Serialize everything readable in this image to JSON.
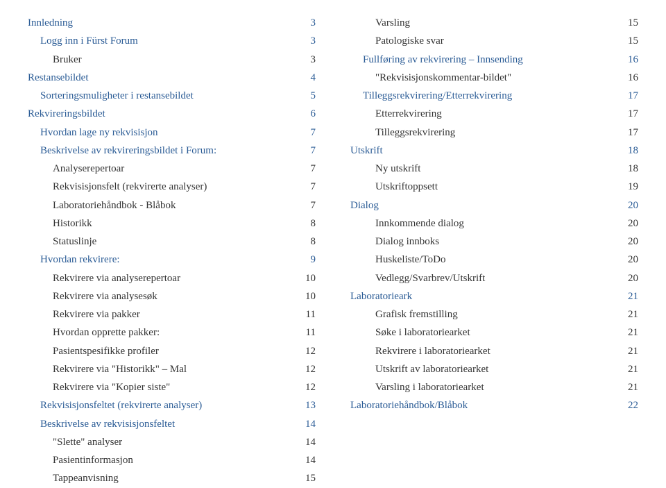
{
  "left": [
    {
      "level": 1,
      "label": "Innledning",
      "page": "3"
    },
    {
      "level": 2,
      "label": "Logg inn i Fürst Forum",
      "page": "3"
    },
    {
      "level": 3,
      "label": "Bruker",
      "page": "3"
    },
    {
      "level": 1,
      "label": "Restansebildet",
      "page": "4"
    },
    {
      "level": 2,
      "label": "Sorteringsmuligheter i restansebildet",
      "page": "5"
    },
    {
      "level": 1,
      "label": "Rekvireringsbildet",
      "page": "6"
    },
    {
      "level": 2,
      "label": "Hvordan lage ny rekvisisjon",
      "page": "7"
    },
    {
      "level": 2,
      "label": "Beskrivelse av rekvireringsbildet i Forum:",
      "page": "7"
    },
    {
      "level": 3,
      "label": "Analyserepertoar",
      "page": "7"
    },
    {
      "level": 3,
      "label": "Rekvisisjonsfelt (rekvirerte analyser)",
      "page": "7"
    },
    {
      "level": 3,
      "label": "Laboratoriehåndbok - Blåbok",
      "page": "7"
    },
    {
      "level": 3,
      "label": "Historikk",
      "page": "8"
    },
    {
      "level": 3,
      "label": "Statuslinje",
      "page": "8"
    },
    {
      "level": 2,
      "label": "Hvordan rekvirere:",
      "page": "9"
    },
    {
      "level": 3,
      "label": "Rekvirere via analyserepertoar",
      "page": "10"
    },
    {
      "level": 3,
      "label": "Rekvirere via analysesøk",
      "page": "10"
    },
    {
      "level": 3,
      "label": "Rekvirere via pakker",
      "page": "11"
    },
    {
      "level": 3,
      "label": "Hvordan opprette pakker:",
      "page": "11"
    },
    {
      "level": 3,
      "label": "Pasientspesifikke profiler",
      "page": "12"
    },
    {
      "level": 3,
      "label": "Rekvirere via \"Historikk\" – Mal",
      "page": "12"
    },
    {
      "level": 3,
      "label": "Rekvirere via \"Kopier siste\"",
      "page": "12"
    },
    {
      "level": 2,
      "label": "Rekvisisjonsfeltet (rekvirerte analyser)",
      "page": "13"
    },
    {
      "level": 2,
      "label": "Beskrivelse av rekvisisjonsfeltet",
      "page": "14"
    },
    {
      "level": 3,
      "label": "\"Slette\" analyser",
      "page": "14"
    },
    {
      "level": 3,
      "label": "Pasientinformasjon",
      "page": "14"
    },
    {
      "level": 3,
      "label": "Tappeanvisning",
      "page": "15"
    }
  ],
  "right": [
    {
      "level": 3,
      "label": "Varsling",
      "page": "15"
    },
    {
      "level": 3,
      "label": "Patologiske svar",
      "page": "15"
    },
    {
      "level": 2,
      "label": "Fullføring av rekvirering – Innsending",
      "page": "16"
    },
    {
      "level": 3,
      "label": "\"Rekvisisjonskommentar-bildet\"",
      "page": "16"
    },
    {
      "level": 2,
      "label": "Tilleggsrekvirering/Etterrekvirering",
      "page": "17"
    },
    {
      "level": 3,
      "label": "Etterrekvirering",
      "page": "17"
    },
    {
      "level": 3,
      "label": "Tilleggsrekvirering",
      "page": "17"
    },
    {
      "level": 1,
      "label": "Utskrift",
      "page": "18"
    },
    {
      "level": 3,
      "label": "Ny utskrift",
      "page": "18"
    },
    {
      "level": 3,
      "label": "Utskriftoppsett",
      "page": "19"
    },
    {
      "level": 1,
      "label": "Dialog",
      "page": "20"
    },
    {
      "level": 3,
      "label": "Innkommende dialog",
      "page": "20"
    },
    {
      "level": 3,
      "label": "Dialog innboks",
      "page": "20"
    },
    {
      "level": 3,
      "label": "Huskeliste/ToDo",
      "page": "20"
    },
    {
      "level": 3,
      "label": "Vedlegg/Svarbrev/Utskrift",
      "page": "20"
    },
    {
      "level": 1,
      "label": "Laboratorieark",
      "page": "21"
    },
    {
      "level": 3,
      "label": "Grafisk fremstilling",
      "page": "21"
    },
    {
      "level": 3,
      "label": "Søke i laboratoriearket",
      "page": "21"
    },
    {
      "level": 3,
      "label": "Rekvirere i laboratoriearket",
      "page": "21"
    },
    {
      "level": 3,
      "label": "Utskrift av laboratoriearket",
      "page": "21"
    },
    {
      "level": 3,
      "label": "Varsling i laboratoriearket",
      "page": "21"
    },
    {
      "level": 1,
      "label": "Laboratoriehåndbok/Blåbok",
      "page": "22"
    }
  ]
}
